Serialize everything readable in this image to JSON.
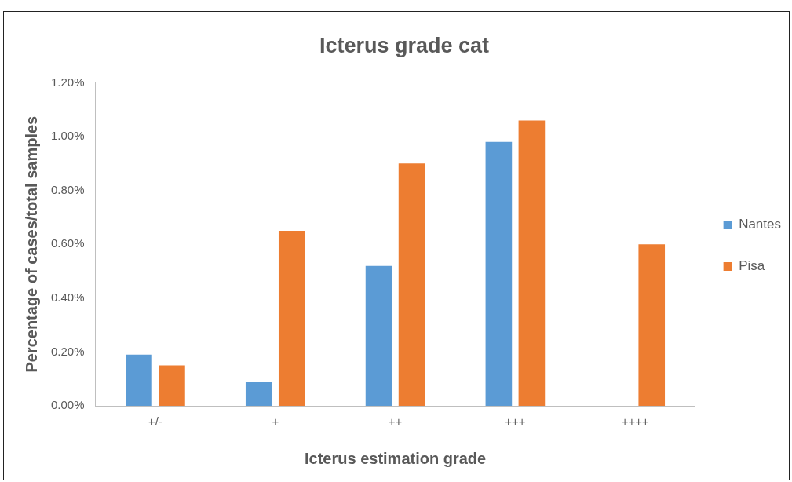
{
  "chart_data": {
    "type": "bar",
    "title": "Icterus grade cat",
    "xlabel": "Icterus estimation grade",
    "ylabel": "Percentage of cases/total samples",
    "categories": [
      "+/-",
      "+",
      "++",
      "+++",
      "++++"
    ],
    "series": [
      {
        "name": "Nantes",
        "color": "#5b9bd5",
        "values": [
          0.19,
          0.09,
          0.52,
          0.98,
          0
        ]
      },
      {
        "name": "Pisa",
        "color": "#ed7d31",
        "values": [
          0.15,
          0.65,
          0.9,
          1.06,
          0.6
        ]
      }
    ],
    "ylim": [
      0,
      1.2
    ],
    "yticks": [
      {
        "value": 0,
        "label": "0.00%"
      },
      {
        "value": 0.2,
        "label": "0.20%"
      },
      {
        "value": 0.4,
        "label": "0.40%"
      },
      {
        "value": 0.6,
        "label": "0.60%"
      },
      {
        "value": 0.8,
        "label": "0.80%"
      },
      {
        "value": 1,
        "label": "1.00%"
      },
      {
        "value": 1.2,
        "label": "1.20%"
      }
    ],
    "grid": false,
    "legend": "right"
  }
}
